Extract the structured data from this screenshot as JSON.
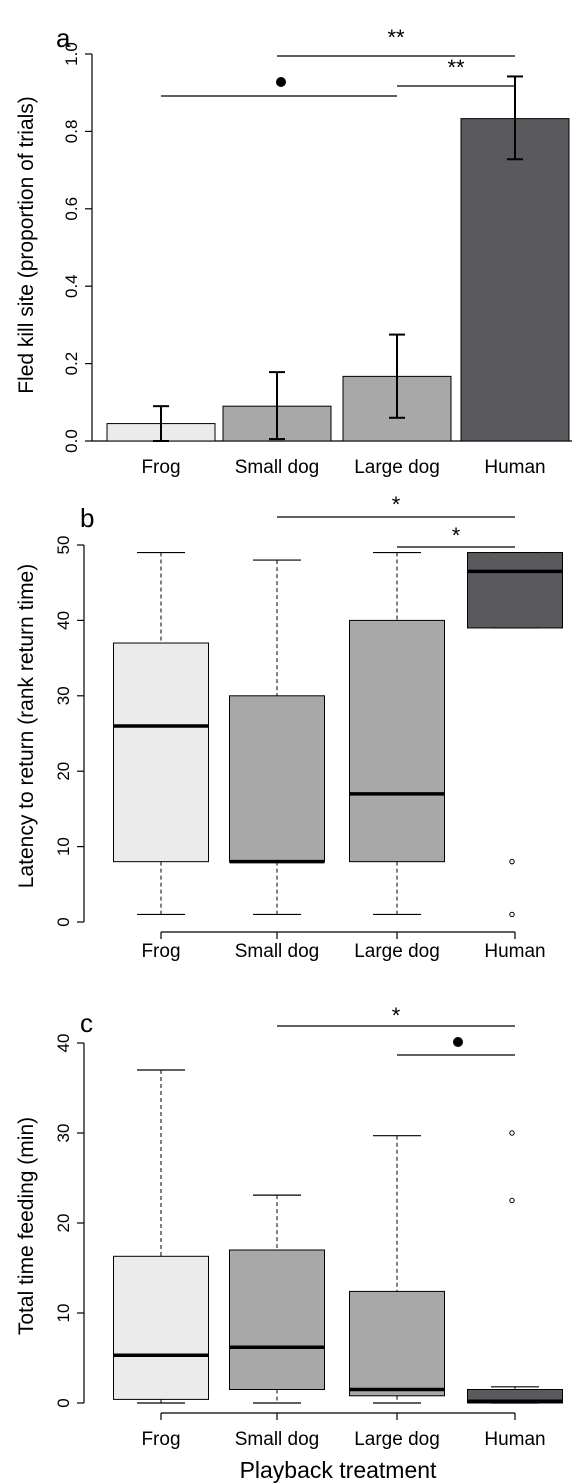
{
  "colors": {
    "frog": "#ebebeb",
    "small_dog": "#a8a8a8",
    "large_dog": "#a8a8a8",
    "human": "#5a5a5e",
    "stroke": "#000000"
  },
  "chart_data": [
    {
      "panel": "a",
      "type": "bar",
      "ylabel": "Fled kill site (proportion of trials)",
      "xlabel": "",
      "ylim": [
        0,
        1.0
      ],
      "yticks": [
        "0.0",
        "0.2",
        "0.4",
        "0.6",
        "0.8",
        "1.0"
      ],
      "categories": [
        "Frog",
        "Small dog",
        "Large dog",
        "Human"
      ],
      "values": [
        0.045,
        0.09,
        0.167,
        0.833
      ],
      "error_low": [
        0.0,
        0.005,
        0.06,
        0.728
      ],
      "error_high": [
        0.09,
        0.178,
        0.275,
        0.942
      ],
      "significance": [
        {
          "from": "Small dog",
          "to": "Human",
          "label": "**"
        },
        {
          "from": "Large dog",
          "to": "Human",
          "label": "**"
        },
        {
          "from": "Frog",
          "to": "Large dog",
          "label": "●"
        }
      ]
    },
    {
      "panel": "b",
      "type": "box",
      "ylabel": "Latency to return (rank return time)",
      "xlabel": "",
      "ylim": [
        0,
        50
      ],
      "yticks": [
        "0",
        "10",
        "20",
        "30",
        "40",
        "50"
      ],
      "categories": [
        "Frog",
        "Small dog",
        "Large dog",
        "Human"
      ],
      "boxes": [
        {
          "whisker_low": 1,
          "q1": 8,
          "median": 26,
          "q3": 37,
          "whisker_high": 49,
          "outliers": []
        },
        {
          "whisker_low": 1,
          "q1": 8,
          "median": 8,
          "q3": 30,
          "whisker_high": 48,
          "outliers": []
        },
        {
          "whisker_low": 1,
          "q1": 8,
          "median": 17,
          "q3": 40,
          "whisker_high": 49,
          "outliers": []
        },
        {
          "whisker_low": 39,
          "q1": 39,
          "median": 46.5,
          "q3": 49,
          "whisker_high": 49,
          "outliers": [
            8,
            1
          ]
        }
      ],
      "significance": [
        {
          "from": "Small dog",
          "to": "Human",
          "label": "*"
        },
        {
          "from": "Large dog",
          "to": "Human",
          "label": "*"
        }
      ]
    },
    {
      "panel": "c",
      "type": "box",
      "ylabel": "Total time feeding (min)",
      "xlabel": "Playback treatment",
      "ylim": [
        0,
        40
      ],
      "yticks": [
        "0",
        "10",
        "20",
        "30",
        "40"
      ],
      "categories": [
        "Frog",
        "Small dog",
        "Large dog",
        "Human"
      ],
      "boxes": [
        {
          "whisker_low": 0,
          "q1": 0.4,
          "median": 5.3,
          "q3": 16.3,
          "whisker_high": 37,
          "outliers": []
        },
        {
          "whisker_low": 0,
          "q1": 1.5,
          "median": 6.2,
          "q3": 17,
          "whisker_high": 23.1,
          "outliers": []
        },
        {
          "whisker_low": 0,
          "q1": 0.8,
          "median": 1.5,
          "q3": 12.4,
          "whisker_high": 29.7,
          "outliers": []
        },
        {
          "whisker_low": 0,
          "q1": 0,
          "median": 0.2,
          "q3": 1.5,
          "whisker_high": 1.8,
          "outliers": [
            30,
            22.5
          ]
        }
      ],
      "significance": [
        {
          "from": "Small dog",
          "to": "Human",
          "label": "*"
        },
        {
          "from": "Large dog",
          "to": "Human",
          "label": "●"
        }
      ]
    }
  ]
}
